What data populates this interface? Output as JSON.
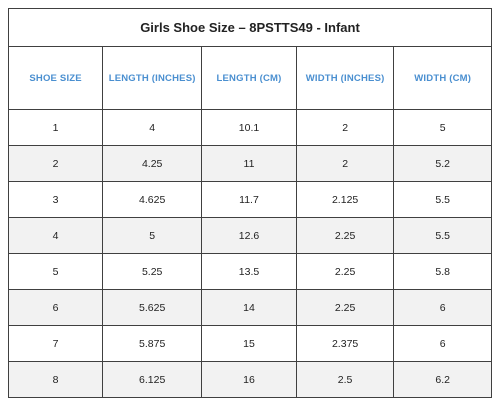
{
  "title": "Girls Shoe Size – 8PSTTS49 - Infant",
  "columns": [
    "Shoe Size",
    "Length (Inches)",
    "Length (cm)",
    "Width (Inches)",
    "Width (cm)"
  ],
  "rows": [
    [
      "1",
      "4",
      "10.1",
      "2",
      "5"
    ],
    [
      "2",
      "4.25",
      "11",
      "2",
      "5.2"
    ],
    [
      "3",
      "4.625",
      "11.7",
      "2.125",
      "5.5"
    ],
    [
      "4",
      "5",
      "12.6",
      "2.25",
      "5.5"
    ],
    [
      "5",
      "5.25",
      "13.5",
      "2.25",
      "5.8"
    ],
    [
      "6",
      "5.625",
      "14",
      "2.25",
      "6"
    ],
    [
      "7",
      "5.875",
      "15",
      "2.375",
      "6"
    ],
    [
      "8",
      "6.125",
      "16",
      "2.5",
      "6.2"
    ]
  ],
  "colors": {
    "header_text": "#4a8fd0",
    "border": "#404040",
    "stripe": "#f2f2f2"
  }
}
